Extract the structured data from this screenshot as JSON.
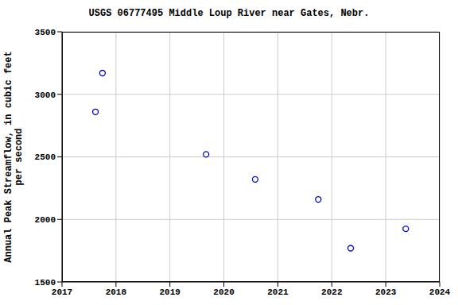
{
  "chart_data": {
    "type": "scatter",
    "title": "USGS 06777495 Middle Loup River near Gates, Nebr.",
    "ylabel": "Annual Peak Streamflow, in cubic feet per second",
    "x": [
      2017.62,
      2017.75,
      2019.67,
      2020.58,
      2021.75,
      2022.35,
      2023.37
    ],
    "values": [
      2860,
      3170,
      2520,
      2320,
      2160,
      1770,
      1925
    ],
    "color": "#0000cc",
    "marker": "circle",
    "xlim": [
      2017,
      2024
    ],
    "xticks": [
      2017,
      2018,
      2019,
      2020,
      2021,
      2022,
      2023,
      2024
    ],
    "ylim": [
      1500,
      3500
    ],
    "yticks": [
      1500,
      2000,
      2500,
      3000,
      3500
    ],
    "grid": true
  }
}
